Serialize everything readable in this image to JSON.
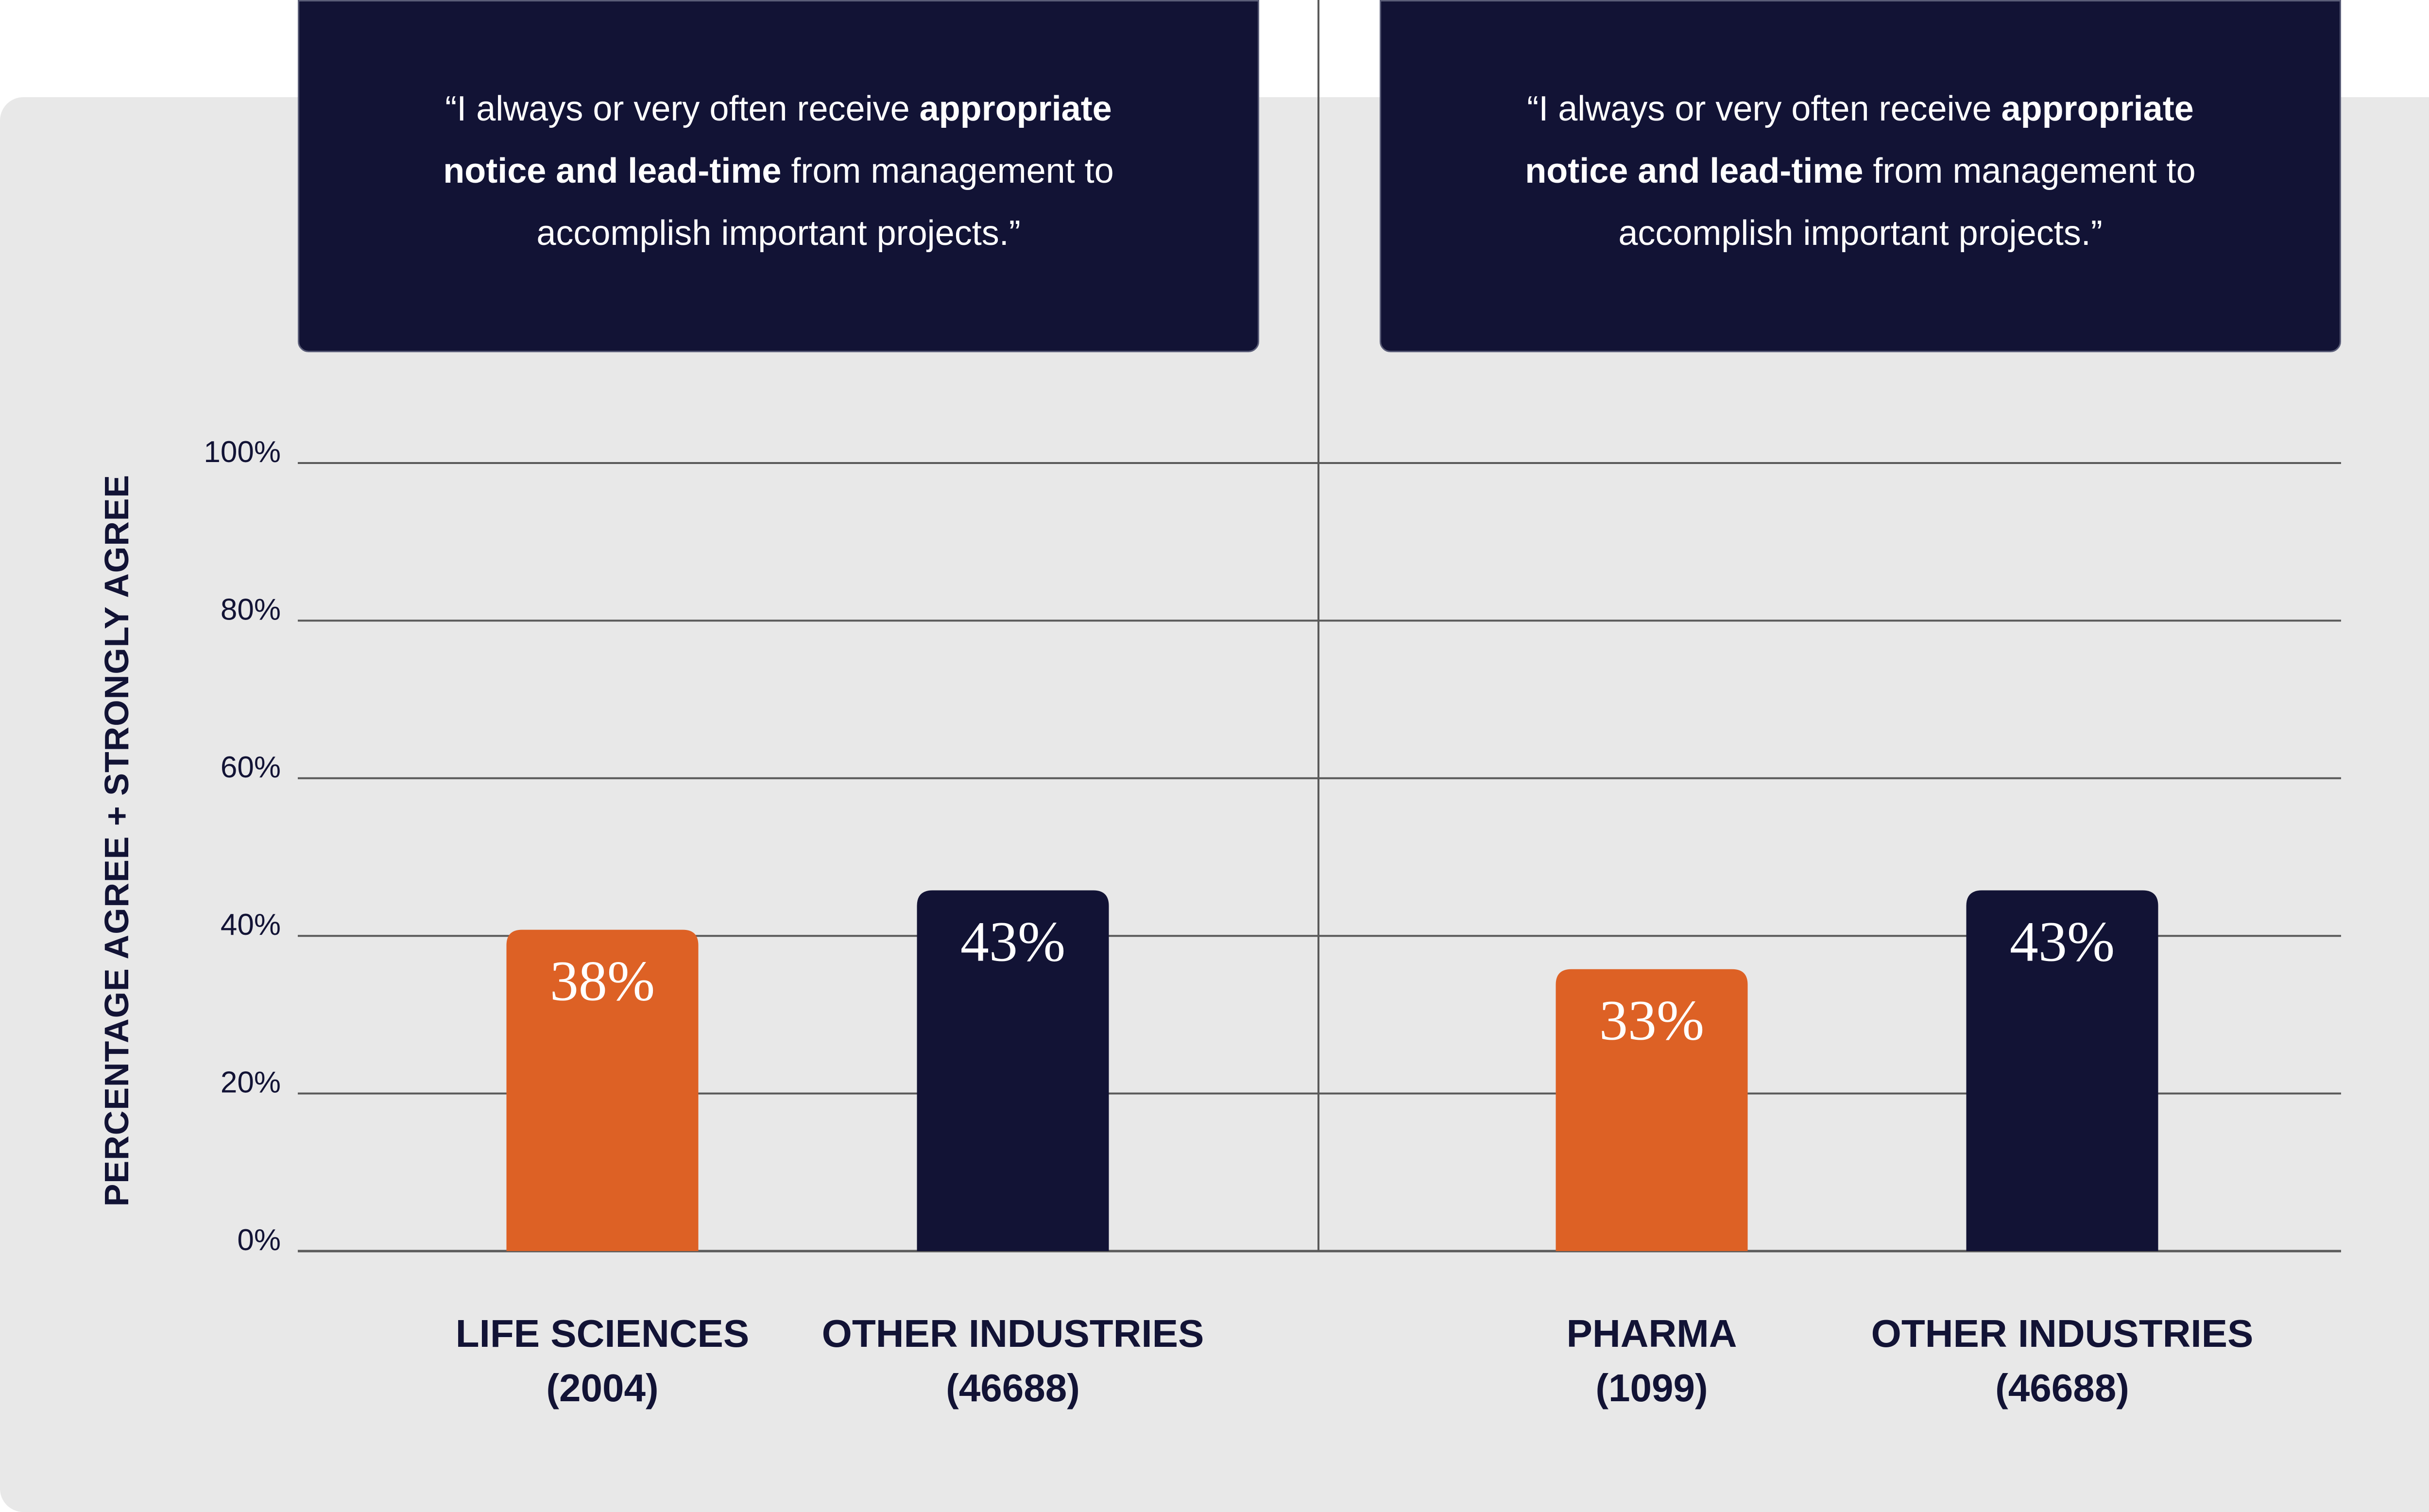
{
  "quotes": [
    {
      "pre": "“I always or very often receive ",
      "bold1": "appropriate",
      "bold2": "notice and lead-time",
      "post": " from management to",
      "end": "accomplish important projects.”"
    },
    {
      "pre": "“I always or very often receive ",
      "bold1": "appropriate",
      "bold2": "notice and lead-time",
      "post": " from management to",
      "end": "accomplish important projects.”"
    }
  ],
  "colors": {
    "orange": "#dd6125",
    "navy": "#121335",
    "panel": "#e8e8e8",
    "grid": "#5a5a5a",
    "axis_text": "#121335"
  },
  "chart_data": [
    {
      "type": "bar",
      "ylabel": "PERCENTAGE AGREE + STRONGLY AGREE",
      "ylim": [
        0,
        100
      ],
      "yticks": [
        0,
        20,
        40,
        60,
        80,
        100
      ],
      "ytick_labels": [
        "0%",
        "20%",
        "40%",
        "60%",
        "80%",
        "100%"
      ],
      "bars": [
        {
          "name": "LIFE SCIENCES",
          "n": "(2004)",
          "value": 38,
          "label": "38%",
          "color": "#dd6125"
        },
        {
          "name": "OTHER INDUSTRIES",
          "n": "(46688)",
          "value": 43,
          "label": "43%",
          "color": "#121335"
        }
      ]
    },
    {
      "type": "bar",
      "ylabel": "PERCENTAGE AGREE + STRONGLY AGREE",
      "ylim": [
        0,
        100
      ],
      "yticks": [
        0,
        20,
        40,
        60,
        80,
        100
      ],
      "ytick_labels": [
        "0%",
        "20%",
        "40%",
        "60%",
        "80%",
        "100%"
      ],
      "bars": [
        {
          "name": "PHARMA",
          "n": "(1099)",
          "value": 33,
          "label": "33%",
          "color": "#dd6125"
        },
        {
          "name": "OTHER INDUSTRIES",
          "n": "(46688)",
          "value": 43,
          "label": "43%",
          "color": "#121335"
        }
      ]
    }
  ]
}
